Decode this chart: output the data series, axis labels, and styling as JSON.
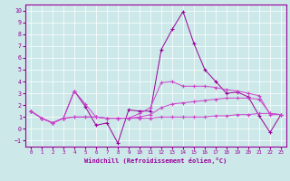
{
  "xlabel": "Windchill (Refroidissement éolien,°C)",
  "x_values": [
    0,
    1,
    2,
    3,
    4,
    5,
    6,
    7,
    8,
    9,
    10,
    11,
    12,
    13,
    14,
    15,
    16,
    17,
    18,
    19,
    20,
    21,
    22,
    23
  ],
  "line1": [
    1.5,
    0.9,
    0.5,
    0.9,
    3.2,
    1.9,
    0.3,
    0.5,
    -1.2,
    1.6,
    1.5,
    1.5,
    6.7,
    8.4,
    9.9,
    7.2,
    5.0,
    4.0,
    3.0,
    3.1,
    2.7,
    1.1,
    -0.3,
    1.2
  ],
  "line2": [
    1.5,
    0.9,
    0.5,
    0.9,
    3.2,
    2.1,
    1.0,
    0.9,
    0.9,
    0.9,
    1.3,
    1.8,
    3.9,
    4.0,
    3.6,
    3.6,
    3.6,
    3.5,
    3.3,
    3.2,
    3.0,
    2.8,
    1.2,
    1.2
  ],
  "line3": [
    1.5,
    0.9,
    0.5,
    0.9,
    1.0,
    1.0,
    1.0,
    0.9,
    0.9,
    0.9,
    0.9,
    0.9,
    1.0,
    1.0,
    1.0,
    1.0,
    1.0,
    1.1,
    1.1,
    1.2,
    1.2,
    1.3,
    1.3,
    1.2
  ],
  "line4": [
    1.5,
    0.9,
    0.5,
    0.9,
    1.0,
    1.0,
    1.0,
    0.9,
    0.9,
    0.9,
    1.0,
    1.2,
    1.8,
    2.1,
    2.2,
    2.3,
    2.4,
    2.5,
    2.6,
    2.6,
    2.6,
    2.5,
    1.3,
    1.2
  ],
  "color_main": "#990099",
  "color_lines": "#cc44cc",
  "bg_color": "#cce8e8",
  "grid_color": "#ffffff",
  "ylim": [
    -1.5,
    10.5
  ],
  "yticks": [
    -1,
    0,
    1,
    2,
    3,
    4,
    5,
    6,
    7,
    8,
    9,
    10
  ],
  "xlim": [
    -0.5,
    23.5
  ],
  "xticks": [
    0,
    1,
    2,
    3,
    4,
    5,
    6,
    7,
    8,
    9,
    10,
    11,
    12,
    13,
    14,
    15,
    16,
    17,
    18,
    19,
    20,
    21,
    22,
    23
  ]
}
